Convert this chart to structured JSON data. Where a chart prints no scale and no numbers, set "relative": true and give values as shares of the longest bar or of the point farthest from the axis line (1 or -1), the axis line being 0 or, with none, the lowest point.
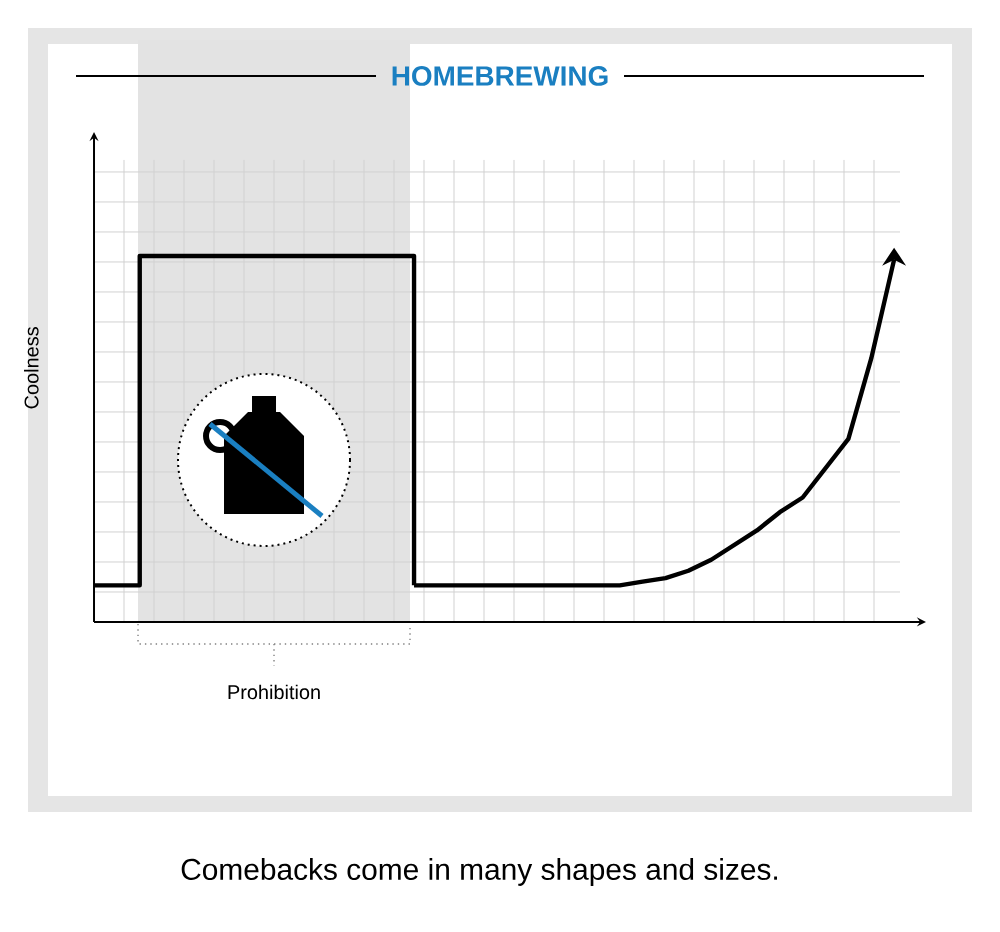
{
  "chart_data": {
    "type": "line",
    "title": "HOMEBREWING",
    "ylabel": "Coolness",
    "relative": true,
    "grid": true,
    "categories": [
      null,
      null,
      null,
      null,
      null,
      null,
      null,
      null,
      null,
      null,
      null,
      null,
      null,
      null,
      null,
      null,
      null,
      null,
      null,
      null,
      null,
      null,
      null,
      null,
      null,
      null,
      null,
      null,
      null,
      null,
      null,
      null,
      null,
      null,
      null,
      null
    ],
    "series": [
      {
        "type": "step",
        "color": "#000000",
        "values": [
          0.1,
          0.1,
          1,
          1,
          1,
          1,
          1,
          1,
          1,
          1,
          1,
          1,
          1,
          1,
          0.1,
          null,
          null,
          null,
          null,
          null,
          null,
          null,
          null,
          null,
          null,
          null,
          null,
          null,
          null,
          null,
          null,
          null,
          null,
          null,
          null,
          null
        ]
      },
      {
        "color": "#000000",
        "values": [
          null,
          null,
          null,
          null,
          null,
          null,
          null,
          null,
          null,
          null,
          null,
          null,
          null,
          null,
          0.1,
          0.1,
          0.1,
          0.1,
          0.1,
          0.1,
          0.1,
          0.1,
          0.1,
          0.1,
          0.11,
          0.12,
          0.14,
          0.17,
          0.21,
          0.25,
          0.3,
          0.34,
          0.42,
          0.5,
          0.72,
          0.99
        ]
      }
    ],
    "annotations": [
      "Prohibition",
      "Comebacks come in many shapes and sizes."
    ]
  }
}
